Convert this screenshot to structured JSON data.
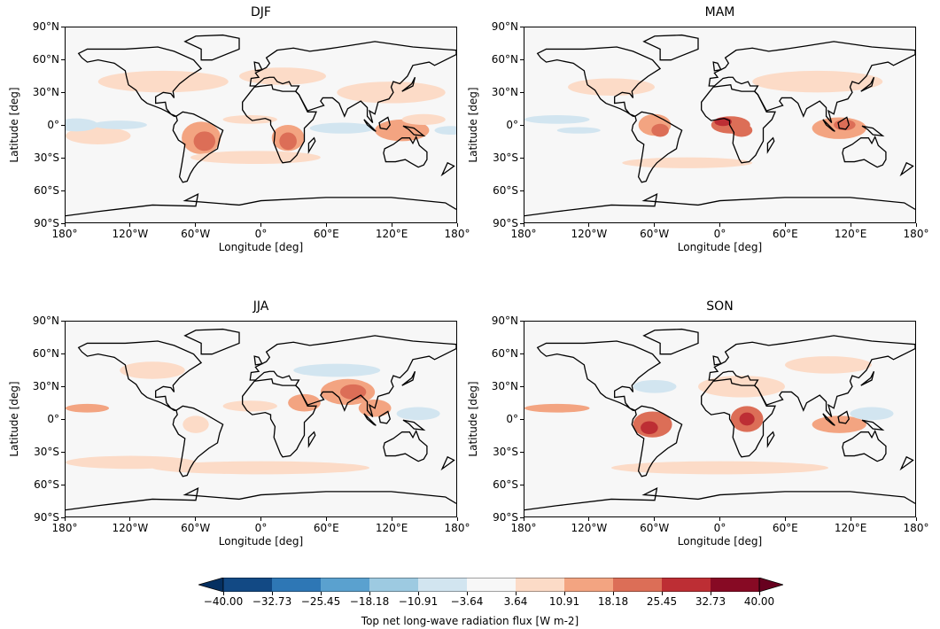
{
  "chart_data": [
    {
      "type": "heatmap",
      "title": "DJF",
      "xlabel": "Longitude [deg]",
      "ylabel": "Latitude [deg]",
      "xlim": [
        -180,
        180
      ],
      "ylim": [
        -90,
        90
      ]
    },
    {
      "type": "heatmap",
      "title": "MAM",
      "xlabel": "Longitude [deg]",
      "ylabel": "Latitude [deg]",
      "xlim": [
        -180,
        180
      ],
      "ylim": [
        -90,
        90
      ]
    },
    {
      "type": "heatmap",
      "title": "JJA",
      "xlabel": "Longitude [deg]",
      "ylabel": "Latitude [deg]",
      "xlim": [
        -180,
        180
      ],
      "ylim": [
        -90,
        90
      ]
    },
    {
      "type": "heatmap",
      "title": "SON",
      "xlabel": "Longitude [deg]",
      "ylabel": "Latitude [deg]",
      "xlim": [
        -180,
        180
      ],
      "ylim": [
        -90,
        90
      ]
    }
  ],
  "xticks": [
    "180°",
    "120°W",
    "60°W",
    "0°",
    "60°E",
    "120°E",
    "180°"
  ],
  "yticks": [
    "90°N",
    "60°N",
    "30°N",
    "0°",
    "30°S",
    "60°S",
    "90°S"
  ],
  "colorbar": {
    "label": "Top net long-wave radiation flux [W m-2]",
    "ticks": [
      "−40.00",
      "−32.73",
      "−25.45",
      "−18.18",
      "−10.91",
      "−3.64",
      "3.64",
      "10.91",
      "18.18",
      "25.45",
      "32.73",
      "40.00"
    ],
    "colors": [
      "#124984",
      "#2e77b5",
      "#5aa1cf",
      "#9dcae1",
      "#d2e5f0",
      "#f7f7f7",
      "#fcdbc7",
      "#f3a481",
      "#dc6e57",
      "#bd2e34",
      "#870a24"
    ],
    "under": "#053061",
    "over": "#67001f"
  }
}
